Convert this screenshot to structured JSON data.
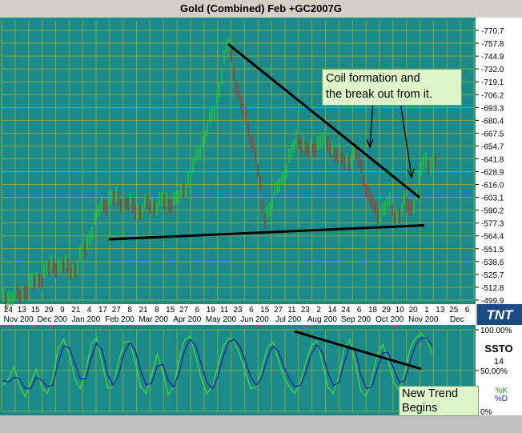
{
  "window": {
    "title": "Gold (Combined) Feb +GC2007G"
  },
  "annotations": {
    "coil_line1": "Coil formation and",
    "coil_line2": "the break out from it.",
    "trend_line1": "New Trend",
    "trend_line2": "Begins"
  },
  "branding": {
    "logo_text": "TNT"
  },
  "colors": {
    "background": "#1a8a8a",
    "grid": "#8aa83a",
    "up_bar": "#22c43a",
    "down_bar": "#a83a2a",
    "k_line": "#40d040",
    "d_line": "#2030a0",
    "trendline": "#000000"
  },
  "chart_data": [
    {
      "type": "bar",
      "title": "Gold (Combined) Feb +GC2007G",
      "y_ticks": [
        "770.7",
        "757.8",
        "744.9",
        "732.0",
        "719.1",
        "706.2",
        "693.3",
        "680.4",
        "667.5",
        "654.7",
        "641.8",
        "628.9",
        "616.0",
        "603.1",
        "590.2",
        "577.3",
        "564.4",
        "551.5",
        "538.6",
        "525.7",
        "512.8",
        "499.9"
      ],
      "ylim": [
        499.9,
        770.7
      ],
      "x_day_labels": [
        "24",
        "13",
        "15",
        "29",
        "9",
        "21",
        "4",
        "17",
        "27",
        "8",
        "21",
        "8",
        "15",
        "27",
        "6",
        "19",
        "11",
        "23",
        "6",
        "15",
        "27",
        "11",
        "23",
        "2",
        "14",
        "24",
        "6",
        "18",
        "29",
        "10",
        "20",
        "1",
        "13",
        "25",
        "6"
      ],
      "x_month_labels": [
        "Nov 200",
        "Dec 200",
        "Jan 200",
        "Feb 200",
        "Mar 200",
        "Apr 200",
        "May 200",
        "Jun 200",
        "Jul 200",
        "Aug 200",
        "Sep 200",
        "Oct 200",
        "Nov 200",
        "Dec"
      ],
      "trendlines": [
        {
          "from": [
            "May 2006",
            757.0
          ],
          "to": [
            "Nov 2006",
            603.0
          ],
          "meaning": "descending resistance"
        },
        {
          "from": [
            "Jan 2006",
            561.0
          ],
          "to": [
            "Nov 2006",
            575.0
          ],
          "meaning": "rising support"
        }
      ],
      "grid": true
    },
    {
      "type": "line",
      "title": "SSTO",
      "params": "14",
      "y_ticks": [
        "100.00%",
        "50.00%",
        "0%"
      ],
      "ylim": [
        0,
        100
      ],
      "series": [
        {
          "name": "%K",
          "values": [
            32,
            40,
            55,
            30,
            18,
            35,
            52,
            30,
            22,
            40,
            78,
            88,
            70,
            40,
            28,
            50,
            82,
            90,
            58,
            28,
            30,
            62,
            85,
            86,
            60,
            30,
            22,
            45,
            70,
            48,
            20,
            30,
            65,
            88,
            92,
            68,
            40,
            22,
            30,
            55,
            80,
            90,
            85,
            70,
            48,
            28,
            30,
            52,
            78,
            85,
            64,
            42,
            30,
            22,
            35,
            60,
            80,
            86,
            60,
            30,
            22,
            42,
            78,
            88,
            60,
            25,
            18,
            40,
            70,
            82,
            62,
            35,
            25,
            48,
            78,
            90,
            95,
            88,
            70
          ]
        },
        {
          "name": "%D",
          "values": [
            38,
            36,
            42,
            40,
            28,
            28,
            42,
            38,
            30,
            32,
            60,
            80,
            78,
            60,
            40,
            40,
            65,
            84,
            75,
            45,
            32,
            45,
            72,
            84,
            75,
            50,
            32,
            35,
            55,
            58,
            38,
            30,
            48,
            75,
            88,
            80,
            58,
            35,
            28,
            42,
            68,
            85,
            88,
            80,
            62,
            42,
            32,
            42,
            65,
            80,
            74,
            55,
            40,
            30,
            32,
            48,
            70,
            82,
            72,
            48,
            32,
            35,
            60,
            80,
            74,
            45,
            28,
            30,
            52,
            72,
            72,
            52,
            35,
            38,
            62,
            82,
            90,
            90,
            80
          ]
        }
      ],
      "trendlines": [
        {
          "from": [
            "Jul 2006",
            98
          ],
          "to": [
            "Nov 2006",
            52
          ],
          "meaning": "stochastic downtrend"
        }
      ]
    }
  ]
}
